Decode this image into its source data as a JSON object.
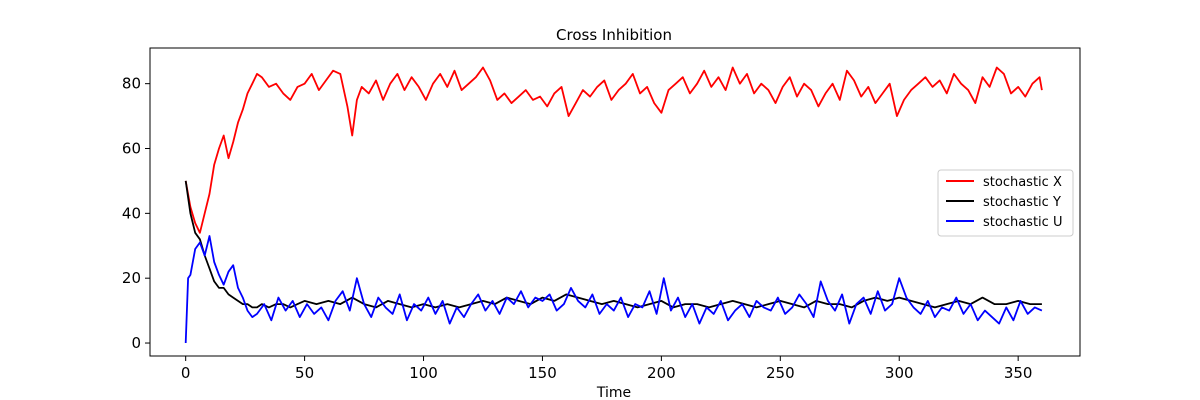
{
  "chart_data": {
    "type": "line",
    "title": "Cross Inhibition",
    "xlabel": "Time",
    "ylabel": "",
    "xlim": [
      -15,
      376
    ],
    "ylim": [
      -4,
      91
    ],
    "xticks": [
      0,
      50,
      100,
      150,
      200,
      250,
      300,
      350
    ],
    "yticks": [
      0,
      20,
      40,
      60,
      80
    ],
    "grid": false,
    "legend_position": "center-right",
    "series": [
      {
        "name": "stochastic X",
        "color": "#ff0000",
        "x": [
          0,
          2,
          4,
          6,
          8,
          10,
          12,
          14,
          16,
          18,
          20,
          22,
          24,
          26,
          28,
          30,
          32,
          35,
          38,
          41,
          44,
          47,
          50,
          53,
          56,
          59,
          62,
          65,
          68,
          70,
          72,
          74,
          77,
          80,
          83,
          86,
          89,
          92,
          95,
          98,
          101,
          104,
          107,
          110,
          113,
          116,
          119,
          122,
          125,
          128,
          131,
          134,
          137,
          140,
          143,
          146,
          149,
          152,
          155,
          158,
          161,
          164,
          167,
          170,
          173,
          176,
          179,
          182,
          185,
          188,
          191,
          194,
          197,
          200,
          203,
          206,
          209,
          212,
          215,
          218,
          221,
          224,
          227,
          230,
          233,
          236,
          239,
          242,
          245,
          248,
          251,
          254,
          257,
          260,
          263,
          266,
          269,
          272,
          275,
          278,
          281,
          284,
          287,
          290,
          293,
          296,
          299,
          302,
          305,
          308,
          311,
          314,
          317,
          320,
          323,
          326,
          329,
          332,
          335,
          338,
          341,
          344,
          347,
          350,
          353,
          356,
          359,
          360
        ],
        "y": [
          50,
          42,
          37,
          34,
          40,
          46,
          55,
          60,
          64,
          57,
          62,
          68,
          72,
          77,
          80,
          83,
          82,
          79,
          80,
          77,
          75,
          79,
          80,
          83,
          78,
          81,
          84,
          83,
          73,
          64,
          75,
          79,
          77,
          81,
          75,
          80,
          83,
          78,
          82,
          79,
          75,
          80,
          83,
          79,
          84,
          78,
          80,
          82,
          85,
          81,
          75,
          77,
          74,
          76,
          78,
          75,
          76,
          73,
          77,
          79,
          70,
          74,
          78,
          76,
          79,
          81,
          75,
          78,
          80,
          83,
          77,
          79,
          74,
          71,
          78,
          80,
          82,
          77,
          80,
          84,
          79,
          82,
          78,
          85,
          80,
          83,
          77,
          80,
          78,
          74,
          79,
          82,
          76,
          80,
          78,
          73,
          77,
          80,
          75,
          84,
          81,
          76,
          79,
          74,
          77,
          80,
          70,
          75,
          78,
          80,
          82,
          79,
          81,
          77,
          83,
          80,
          78,
          74,
          82,
          79,
          85,
          83,
          77,
          79,
          76,
          80,
          82,
          78
        ]
      },
      {
        "name": "stochastic Y",
        "color": "#000000",
        "x": [
          0,
          2,
          4,
          6,
          8,
          10,
          12,
          14,
          16,
          18,
          20,
          22,
          24,
          26,
          28,
          30,
          32,
          35,
          38,
          41,
          44,
          47,
          50,
          55,
          60,
          65,
          70,
          75,
          80,
          85,
          90,
          95,
          100,
          105,
          110,
          115,
          120,
          125,
          130,
          135,
          140,
          145,
          150,
          155,
          160,
          165,
          170,
          175,
          180,
          185,
          190,
          195,
          200,
          205,
          210,
          215,
          220,
          225,
          230,
          235,
          240,
          245,
          250,
          255,
          260,
          265,
          270,
          275,
          280,
          285,
          290,
          295,
          300,
          305,
          310,
          315,
          320,
          325,
          330,
          335,
          340,
          345,
          350,
          355,
          360
        ],
        "y": [
          50,
          40,
          34,
          32,
          27,
          23,
          19,
          17,
          17,
          15,
          14,
          13,
          12,
          12,
          11,
          11,
          12,
          11,
          12,
          12,
          11,
          12,
          13,
          12,
          13,
          12,
          14,
          12,
          11,
          13,
          12,
          11,
          12,
          11,
          12,
          11,
          12,
          13,
          12,
          14,
          13,
          12,
          14,
          13,
          15,
          14,
          13,
          12,
          13,
          12,
          11,
          12,
          13,
          11,
          12,
          12,
          11,
          12,
          13,
          12,
          11,
          12,
          13,
          12,
          11,
          13,
          12,
          12,
          11,
          13,
          14,
          13,
          14,
          13,
          12,
          11,
          12,
          13,
          12,
          14,
          12,
          12,
          13,
          12,
          12
        ]
      },
      {
        "name": "stochastic U",
        "color": "#0000ff",
        "x": [
          0,
          1,
          2,
          4,
          6,
          8,
          10,
          12,
          14,
          16,
          18,
          20,
          22,
          24,
          26,
          28,
          30,
          33,
          36,
          39,
          42,
          45,
          48,
          51,
          54,
          57,
          60,
          63,
          66,
          69,
          72,
          75,
          78,
          81,
          84,
          87,
          90,
          93,
          96,
          99,
          102,
          105,
          108,
          111,
          114,
          117,
          120,
          123,
          126,
          129,
          132,
          135,
          138,
          141,
          144,
          147,
          150,
          153,
          156,
          159,
          162,
          165,
          168,
          171,
          174,
          177,
          180,
          183,
          186,
          189,
          192,
          195,
          198,
          201,
          204,
          207,
          210,
          213,
          216,
          219,
          222,
          225,
          228,
          231,
          234,
          237,
          240,
          243,
          246,
          249,
          252,
          255,
          258,
          261,
          264,
          267,
          270,
          273,
          276,
          279,
          282,
          285,
          288,
          291,
          294,
          297,
          300,
          303,
          306,
          309,
          312,
          315,
          318,
          321,
          324,
          327,
          330,
          333,
          336,
          339,
          342,
          345,
          348,
          351,
          354,
          357,
          360
        ],
        "y": [
          0,
          20,
          21,
          29,
          31,
          27,
          33,
          25,
          21,
          18,
          22,
          24,
          17,
          14,
          10,
          8,
          9,
          12,
          7,
          14,
          10,
          13,
          8,
          12,
          9,
          11,
          7,
          13,
          16,
          10,
          20,
          12,
          8,
          14,
          11,
          9,
          15,
          7,
          12,
          10,
          14,
          9,
          13,
          6,
          11,
          8,
          12,
          15,
          10,
          13,
          9,
          14,
          12,
          16,
          11,
          14,
          13,
          15,
          10,
          12,
          17,
          13,
          11,
          15,
          9,
          12,
          10,
          14,
          8,
          12,
          11,
          16,
          9,
          20,
          10,
          14,
          8,
          12,
          6,
          11,
          9,
          13,
          7,
          10,
          12,
          8,
          13,
          11,
          10,
          14,
          9,
          11,
          15,
          12,
          8,
          19,
          13,
          10,
          15,
          6,
          12,
          14,
          9,
          16,
          10,
          12,
          20,
          14,
          11,
          9,
          13,
          8,
          11,
          10,
          14,
          9,
          12,
          7,
          10,
          8,
          6,
          11,
          7,
          13,
          9,
          11,
          10
        ]
      }
    ]
  }
}
